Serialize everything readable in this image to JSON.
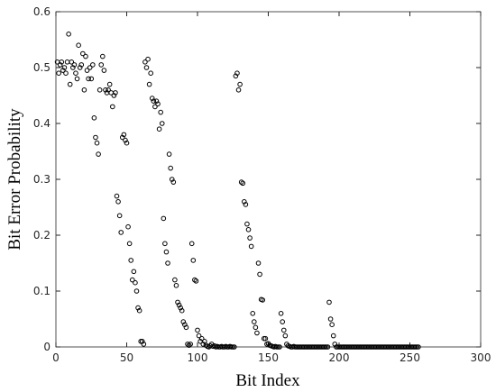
{
  "chart_data": {
    "type": "scatter",
    "xlabel": "Bit Index",
    "ylabel": "Bit Error Probability",
    "xlim": [
      0,
      300
    ],
    "ylim": [
      0,
      0.6
    ],
    "xticks": [
      0,
      50,
      100,
      150,
      200,
      250,
      300
    ],
    "yticks": [
      0,
      0.1,
      0.2,
      0.3,
      0.4,
      0.5,
      0.6
    ],
    "grid": false,
    "series": [
      {
        "color": "#000000",
        "x": [
          1,
          2,
          3,
          4,
          5,
          6,
          7,
          8,
          9,
          10,
          11,
          12,
          13,
          14,
          15,
          16,
          17,
          18,
          19,
          20,
          21,
          22,
          23,
          24,
          25,
          26,
          27,
          28,
          29,
          30,
          31,
          32,
          33,
          34,
          35,
          36,
          37,
          38,
          39,
          40,
          41,
          42,
          43,
          44,
          45,
          46,
          47,
          48,
          49,
          50,
          51,
          52,
          53,
          54,
          55,
          56,
          57,
          58,
          59,
          60,
          61,
          62,
          63,
          64,
          65,
          66,
          67,
          68,
          69,
          70,
          71,
          72,
          73,
          74,
          75,
          76,
          77,
          78,
          79,
          80,
          81,
          82,
          83,
          84,
          85,
          86,
          87,
          88,
          89,
          90,
          91,
          92,
          93,
          94,
          95,
          96,
          97,
          98,
          99,
          100,
          101,
          102,
          103,
          104,
          105,
          106,
          107,
          108,
          109,
          110,
          111,
          112,
          113,
          114,
          115,
          116,
          117,
          118,
          119,
          120,
          121,
          122,
          123,
          124,
          125,
          126,
          127,
          128,
          129,
          130,
          131,
          132,
          133,
          134,
          135,
          136,
          137,
          138,
          139,
          140,
          141,
          142,
          143,
          144,
          145,
          146,
          147,
          148,
          149,
          150,
          151,
          152,
          153,
          154,
          155,
          156,
          157,
          158,
          159,
          160,
          161,
          162,
          163,
          164,
          165,
          166,
          167,
          168,
          169,
          170,
          171,
          172,
          173,
          174,
          175,
          176,
          177,
          178,
          179,
          180,
          181,
          182,
          183,
          184,
          185,
          186,
          187,
          188,
          189,
          190,
          191,
          192,
          193,
          194,
          195,
          196,
          197,
          198,
          199,
          200,
          201,
          202,
          203,
          204,
          205,
          206,
          207,
          208,
          209,
          210,
          211,
          212,
          213,
          214,
          215,
          216,
          217,
          218,
          219,
          220,
          221,
          222,
          223,
          224,
          225,
          226,
          227,
          228,
          229,
          230,
          231,
          232,
          233,
          234,
          235,
          236,
          237,
          238,
          239,
          240,
          241,
          242,
          243,
          244,
          245,
          246,
          247,
          248,
          249,
          250,
          251,
          252,
          253,
          254,
          255,
          256
        ],
        "values": [
          0.51,
          0.49,
          0.505,
          0.51,
          0.495,
          0.5,
          0.49,
          0.51,
          0.56,
          0.47,
          0.51,
          0.5,
          0.505,
          0.49,
          0.48,
          0.54,
          0.5,
          0.505,
          0.525,
          0.46,
          0.52,
          0.495,
          0.48,
          0.5,
          0.48,
          0.505,
          0.41,
          0.375,
          0.365,
          0.345,
          0.46,
          0.505,
          0.52,
          0.495,
          0.46,
          0.455,
          0.46,
          0.47,
          0.455,
          0.43,
          0.45,
          0.455,
          0.27,
          0.26,
          0.235,
          0.205,
          0.375,
          0.38,
          0.37,
          0.365,
          0.215,
          0.185,
          0.155,
          0.12,
          0.135,
          0.115,
          0.1,
          0.07,
          0.065,
          0.01,
          0.01,
          0.005,
          0.51,
          0.5,
          0.515,
          0.47,
          0.49,
          0.445,
          0.44,
          0.43,
          0.44,
          0.435,
          0.39,
          0.42,
          0.4,
          0.23,
          0.185,
          0.17,
          0.15,
          0.345,
          0.32,
          0.3,
          0.295,
          0.12,
          0.11,
          0.08,
          0.075,
          0.07,
          0.065,
          0.045,
          0.04,
          0.035,
          0.005,
          0.003,
          0.005,
          0.185,
          0.155,
          0.12,
          0.118,
          0.03,
          0.02,
          0.01,
          0.015,
          0.005,
          0.01,
          0.003,
          0.001,
          0,
          0.002,
          0.005,
          0.001,
          0.002,
          0,
          0.001,
          0,
          0,
          0.001,
          0,
          0,
          0.001,
          0,
          0,
          0.001,
          0,
          0,
          0,
          0.485,
          0.49,
          0.46,
          0.47,
          0.295,
          0.293,
          0.26,
          0.255,
          0.22,
          0.21,
          0.195,
          0.18,
          0.06,
          0.045,
          0.035,
          0.025,
          0.15,
          0.13,
          0.085,
          0.084,
          0.015,
          0.015,
          0.005,
          0.006,
          0.003,
          0.002,
          0.001,
          0,
          0.001,
          0,
          0,
          0,
          0.06,
          0.045,
          0.03,
          0.02,
          0.005,
          0.002,
          0.001,
          0,
          0,
          0.001,
          0,
          0,
          0,
          0,
          0,
          0,
          0,
          0,
          0,
          0,
          0,
          0,
          0,
          0,
          0,
          0,
          0,
          0,
          0,
          0,
          0,
          0,
          0,
          0,
          0.08,
          0.05,
          0.04,
          0.02,
          0.005,
          0,
          0,
          0,
          0,
          0,
          0,
          0,
          0,
          0,
          0,
          0,
          0,
          0,
          0,
          0,
          0,
          0,
          0,
          0,
          0,
          0,
          0,
          0,
          0,
          0,
          0,
          0,
          0,
          0,
          0,
          0,
          0,
          0,
          0,
          0,
          0,
          0,
          0,
          0,
          0,
          0,
          0,
          0,
          0,
          0,
          0,
          0,
          0,
          0,
          0,
          0,
          0,
          0,
          0,
          0,
          0,
          0,
          0,
          0
        ]
      }
    ]
  }
}
